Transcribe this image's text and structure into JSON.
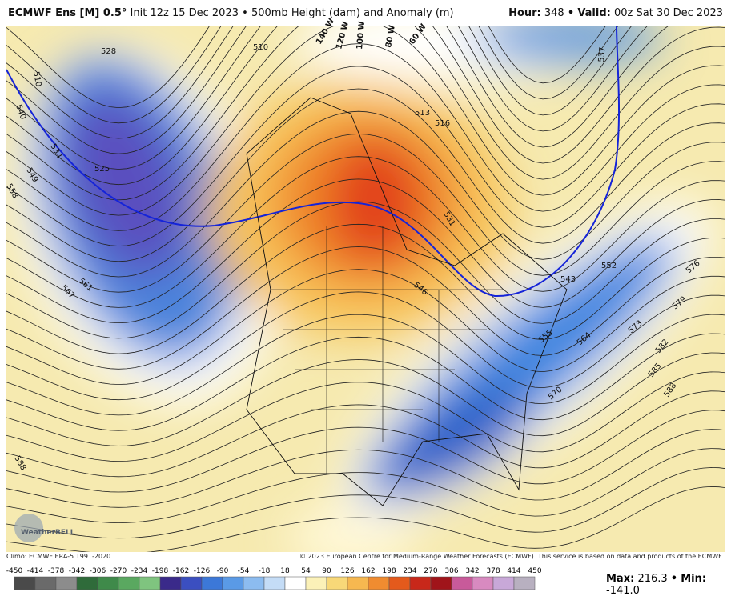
{
  "header": {
    "model": "ECMWF Ens [M] 0.5°",
    "run": "Init 12z 15 Dec 2023",
    "separator": "•",
    "field": "500mb Height (dam) and Anomaly (m)",
    "hour_label": "Hour:",
    "hour": "348",
    "valid_label": "Valid:",
    "valid": "00z Sat 30 Dec 2023"
  },
  "map": {
    "longitudes": [
      "140 W",
      "120 W",
      "100 W",
      "80 W",
      "60 W"
    ],
    "contour_labels": [
      "510",
      "528",
      "540",
      "534",
      "549",
      "558",
      "525",
      "510",
      "567",
      "561",
      "513",
      "516",
      "537",
      "552",
      "576",
      "543",
      "579",
      "573",
      "564",
      "555",
      "582",
      "570",
      "585",
      "588",
      "588",
      "546",
      "531"
    ],
    "logo": "WeatherBELL"
  },
  "footer": {
    "climo": "Climo: ECMWF ERA-5 1991-2020",
    "copyright": "© 2023 European Centre for Medium-Range Weather Forecasts (ECMWF). This service is based on data and products of the ECMWF."
  },
  "colorbar": {
    "ticks": [
      -450,
      -414,
      -378,
      -342,
      -306,
      -270,
      -234,
      -198,
      -162,
      -126,
      -90,
      -54,
      -18,
      18,
      54,
      90,
      126,
      162,
      198,
      234,
      270,
      306,
      342,
      378,
      414,
      450
    ]
  },
  "stats": {
    "max_label": "Max:",
    "max": "216.3",
    "min_label": "Min:",
    "min": "-141.0"
  }
}
